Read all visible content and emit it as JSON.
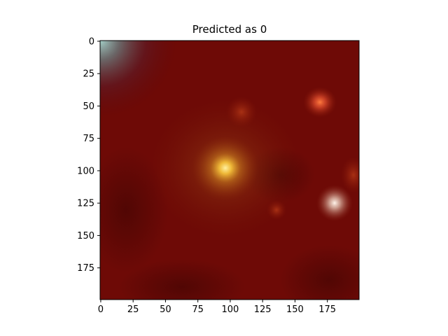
{
  "title": "Predicted as 0",
  "image": {
    "description_colors": {
      "background": "#6e0a06",
      "dark_red": "#4a0604",
      "central_source": "#f2b22e",
      "central_glow": "#b5621a",
      "top_right_source": "#e2522a",
      "right_source": "#e8dcd2",
      "top_left_corner": "#8ab6b0"
    },
    "size": [
      200,
      200
    ]
  },
  "x_axis": {
    "ticks": [
      0,
      25,
      50,
      75,
      100,
      125,
      150,
      175
    ],
    "range": [
      -0.5,
      199.5
    ]
  },
  "y_axis": {
    "ticks": [
      0,
      25,
      50,
      75,
      100,
      125,
      150,
      175
    ],
    "range": [
      -0.5,
      199.5
    ],
    "inverted": true
  }
}
